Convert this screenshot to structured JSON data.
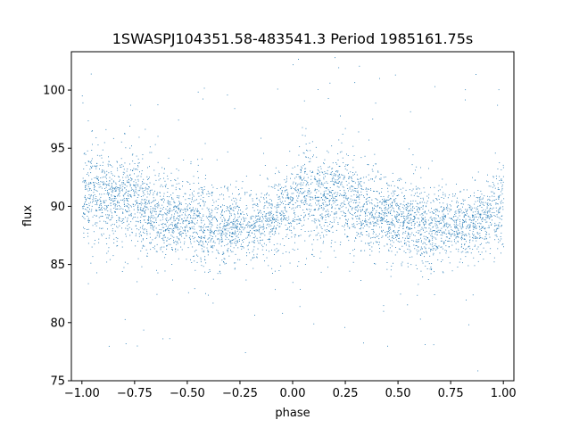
{
  "chart_data": {
    "type": "scatter",
    "title": "1SWASPJ104351.58-483541.3 Period 1985161.75s",
    "xlabel": "phase",
    "ylabel": "flux",
    "xlim": [
      -1.05,
      1.05
    ],
    "ylim": [
      75.0,
      103.3
    ],
    "xticks": [
      -1.0,
      -0.75,
      -0.5,
      -0.25,
      0.0,
      0.25,
      0.5,
      0.75,
      1.0
    ],
    "xtick_labels": [
      "−1.00",
      "−0.75",
      "−0.50",
      "−0.25",
      "0.00",
      "0.25",
      "0.50",
      "0.75",
      "1.00"
    ],
    "yticks": [
      75,
      80,
      85,
      90,
      95,
      100
    ],
    "ytick_labels": [
      "75",
      "80",
      "85",
      "90",
      "95",
      "100"
    ],
    "grid": false,
    "point_color": "#1f77b4",
    "phase_range": [
      -1.0,
      1.0
    ],
    "profile": {
      "phase": [
        0.0,
        0.05,
        0.1,
        0.15,
        0.2,
        0.25,
        0.3,
        0.35,
        0.4,
        0.45,
        0.5,
        0.55,
        0.6,
        0.65,
        0.7,
        0.75,
        0.8,
        0.85,
        0.9,
        0.95,
        1.0
      ],
      "median": [
        90.0,
        91.5,
        91.0,
        90.5,
        91.0,
        90.8,
        90.0,
        89.5,
        89.5,
        89.0,
        89.0,
        88.5,
        88.0,
        88.0,
        88.5,
        88.5,
        88.2,
        88.5,
        89.0,
        89.8,
        90.0
      ],
      "half_width": [
        2.5,
        3.5,
        3.5,
        3.0,
        3.5,
        3.5,
        3.0,
        3.0,
        3.0,
        3.0,
        2.8,
        3.0,
        3.2,
        3.0,
        2.5,
        2.5,
        2.5,
        2.5,
        2.5,
        2.8,
        3.0
      ]
    }
  }
}
